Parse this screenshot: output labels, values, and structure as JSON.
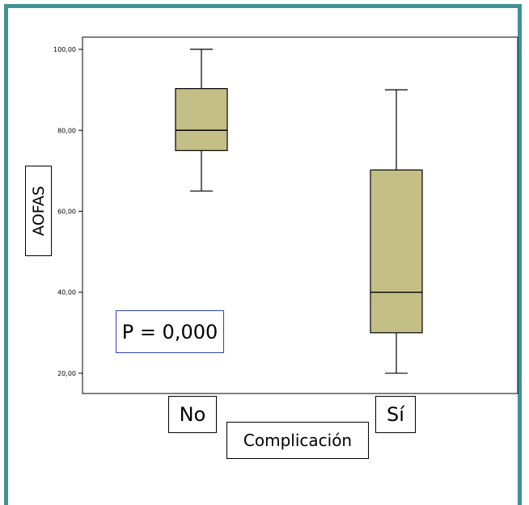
{
  "chart_data": {
    "type": "boxplot",
    "xlabel": "Complicación",
    "ylabel": "AOFAS",
    "ylim": [
      15,
      103
    ],
    "yticks": [
      "20,00",
      "40,00",
      "60,00",
      "80,00",
      "100,00"
    ],
    "ytick_values": [
      20,
      40,
      60,
      80,
      100
    ],
    "categories": [
      "No",
      "Sí"
    ],
    "boxes": [
      {
        "category": "No",
        "min": 65,
        "q1": 75,
        "median": 80,
        "q3": 90.3,
        "max": 100
      },
      {
        "category": "Sí",
        "min": 20,
        "q1": 30,
        "median": 40,
        "q3": 70.2,
        "max": 90
      }
    ],
    "annotation": "P = 0,000",
    "box_fill": "#c4bf86",
    "frame_color": "#3f9292"
  }
}
